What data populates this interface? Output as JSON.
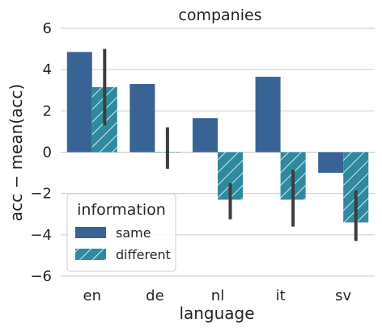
{
  "chart_data": {
    "type": "bar",
    "title": "companies",
    "xlabel": "language",
    "ylabel": "acc − mean(acc)",
    "categories": [
      "en",
      "de",
      "nl",
      "it",
      "sv"
    ],
    "ylim": [
      -6,
      6
    ],
    "yticks": [
      6,
      4,
      2,
      0,
      -2,
      -4,
      -6
    ],
    "ytick_labels": [
      "6",
      "4",
      "2",
      "0",
      "−2",
      "−4",
      "−6"
    ],
    "grid": "horizontal",
    "legend": {
      "title": "information",
      "placement": "lower-left"
    },
    "series": [
      {
        "name": "same",
        "color": "#3a6395",
        "hatch": false,
        "values": [
          4.85,
          3.3,
          1.65,
          3.65,
          -1.0
        ],
        "ci": [
          null,
          null,
          null,
          null,
          null
        ]
      },
      {
        "name": "different",
        "color": "#2f8aa0",
        "hatch": true,
        "values": [
          3.15,
          0.0,
          -2.3,
          -2.3,
          -3.4
        ],
        "ci": [
          [
            1.3,
            5.0
          ],
          [
            -0.8,
            1.2
          ],
          [
            -3.25,
            -1.5
          ],
          [
            -3.6,
            -0.85
          ],
          [
            -4.3,
            -1.85
          ]
        ]
      }
    ]
  }
}
